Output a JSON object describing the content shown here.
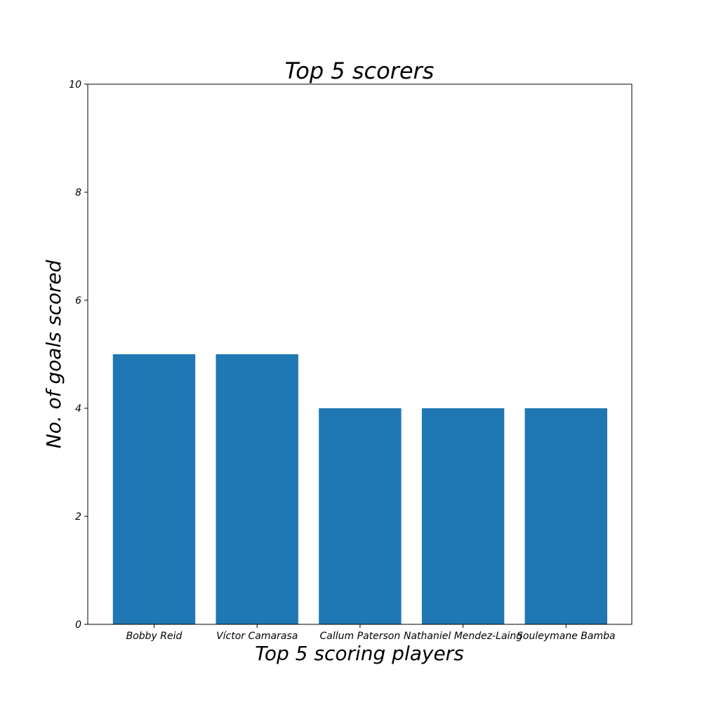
{
  "chart_data": {
    "type": "bar",
    "title": "Top 5 scorers",
    "xlabel": "Top 5 scoring players",
    "ylabel": "No. of goals scored",
    "categories": [
      "Bobby Reid",
      "Víctor Camarasa",
      "Callum Paterson",
      "Nathaniel Mendez-Laing",
      "Souleymane Bamba"
    ],
    "values": [
      5,
      5,
      4,
      4,
      4
    ],
    "ylim": [
      0,
      10
    ],
    "yticks": [
      0,
      2,
      4,
      6,
      8,
      10
    ],
    "grid": false,
    "legend": "none",
    "bar_color": "#1f77b4"
  }
}
